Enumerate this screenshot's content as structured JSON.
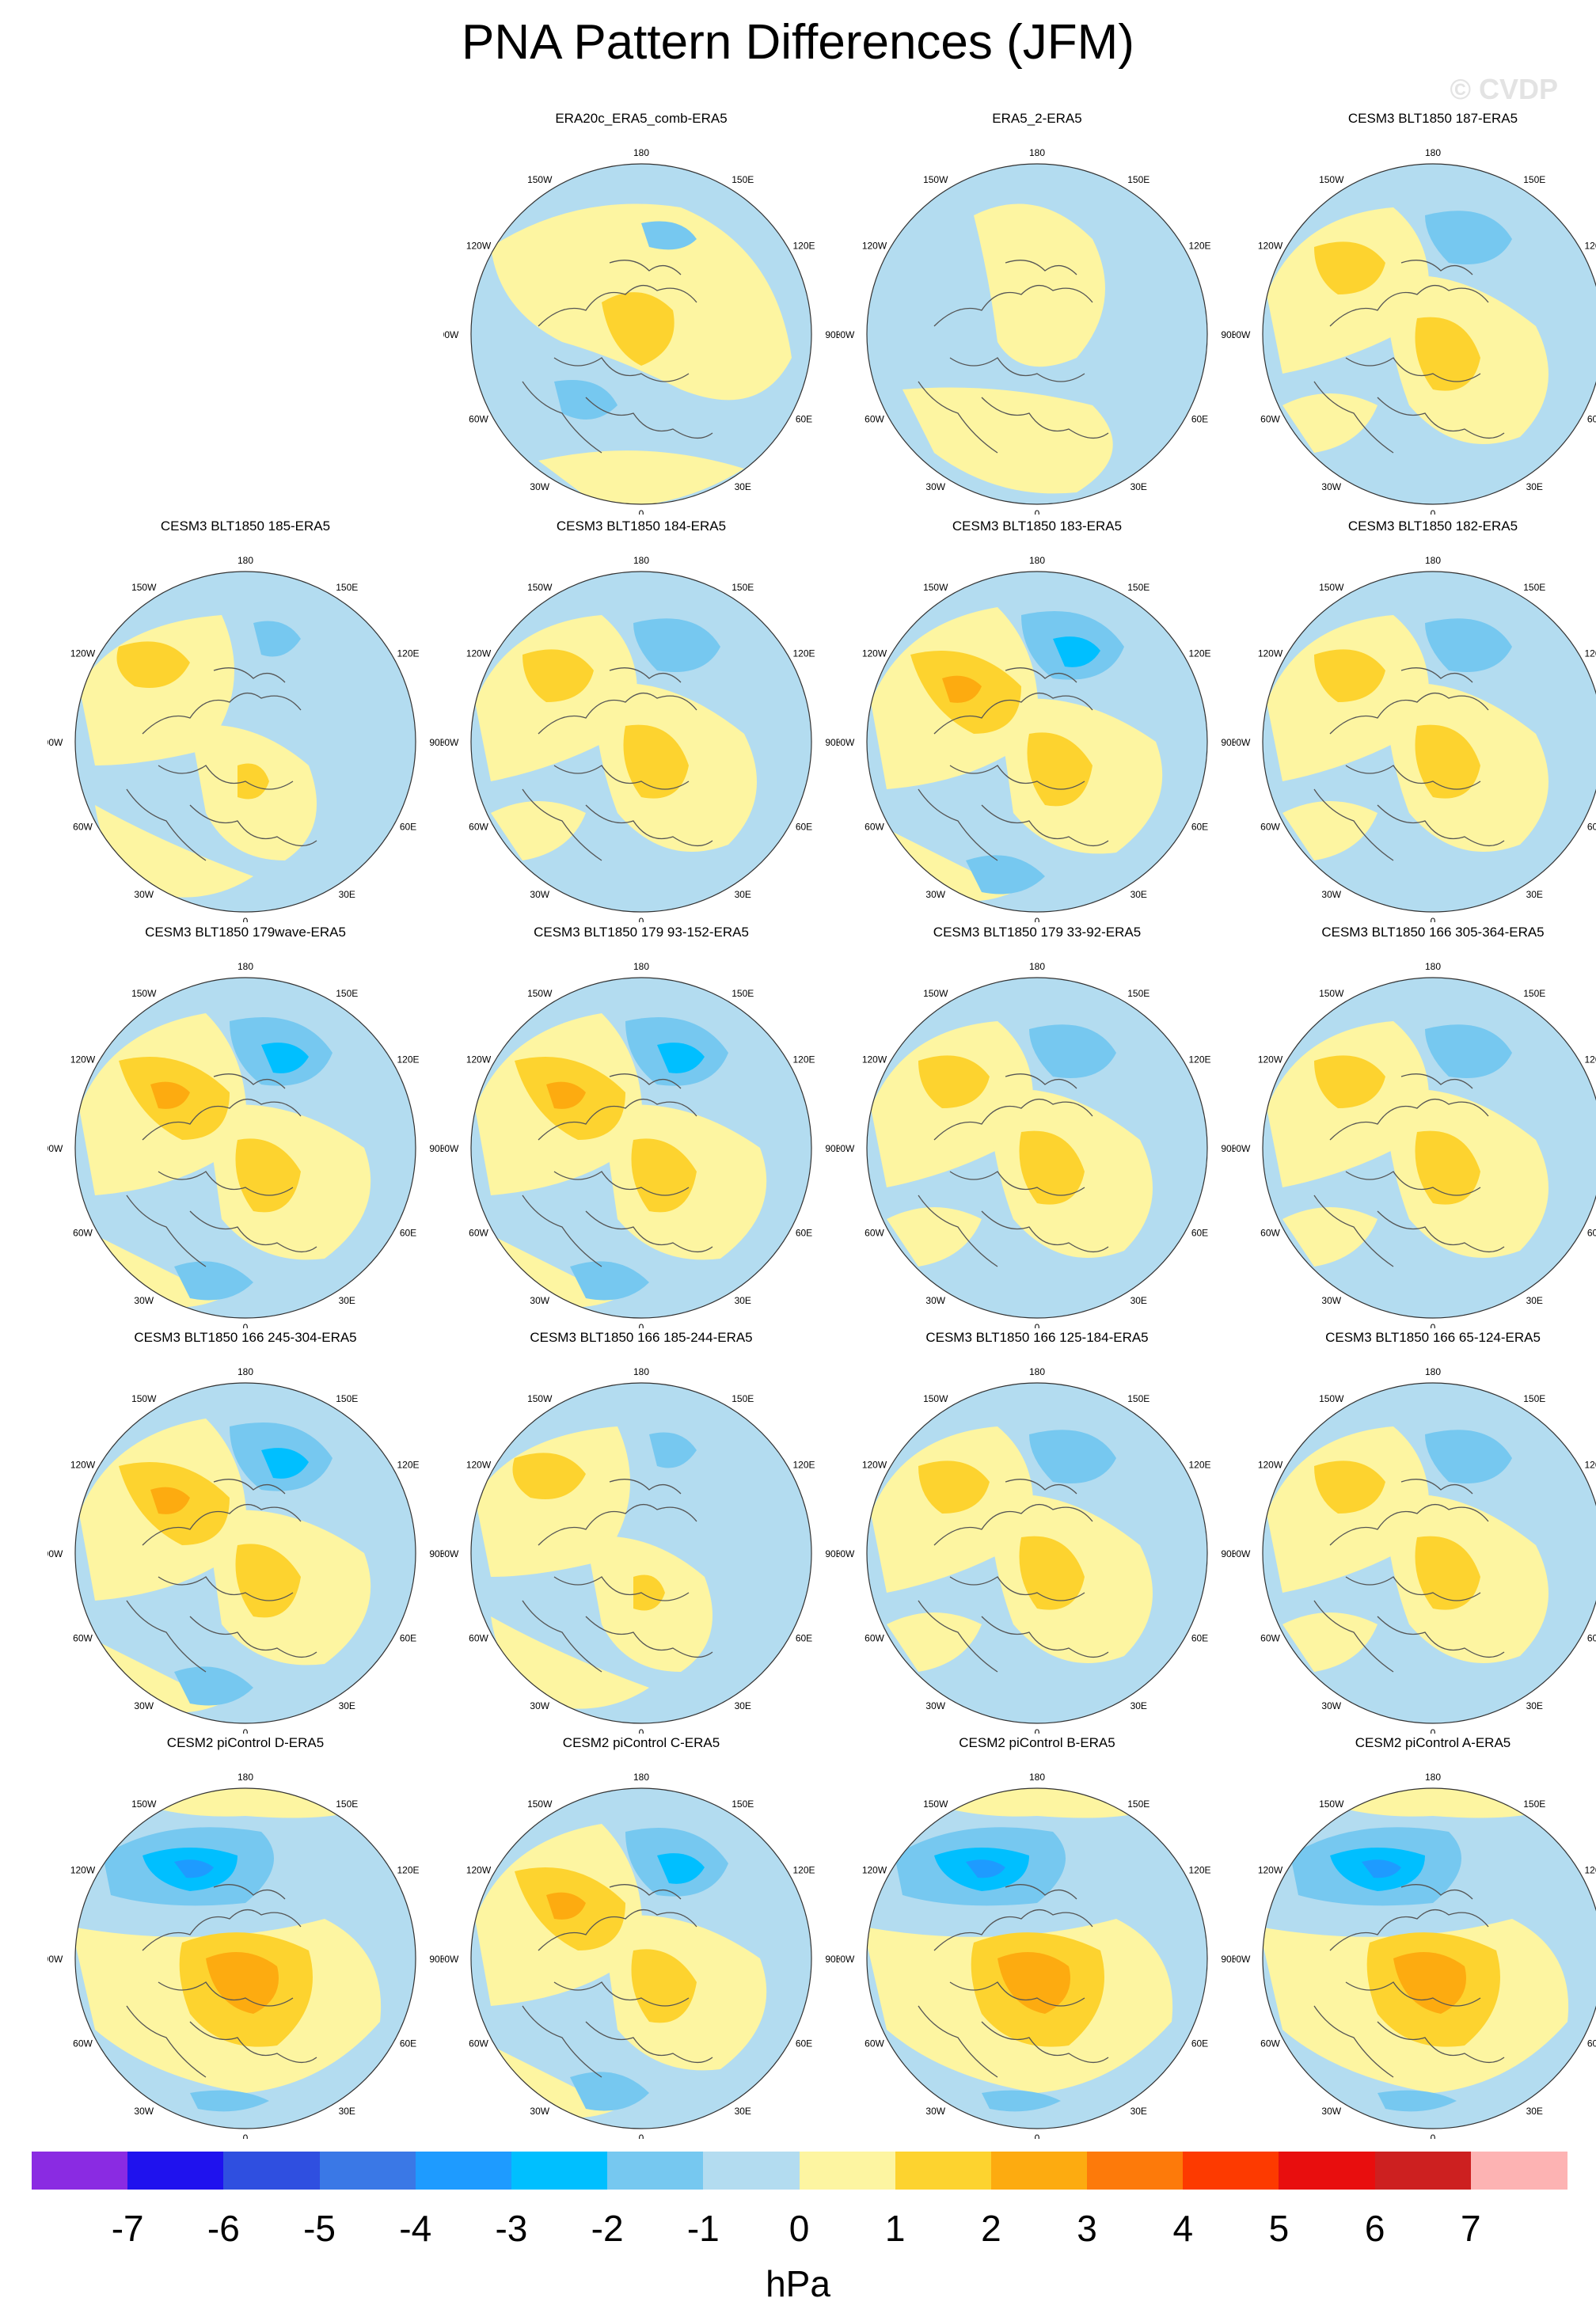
{
  "title": "PNA Pattern Differences (JFM)",
  "copyright": "© CVDP",
  "panel_labels": {
    "top": "180",
    "bottom": "0",
    "left": "90W",
    "right": "90E",
    "top_left": "150W",
    "top_right": "150E",
    "upper_left": "120W",
    "upper_right": "120E",
    "lower_left": "60W",
    "lower_right": "60E",
    "bottom_left": "30W",
    "bottom_right": "30E"
  },
  "panels": [
    {
      "title": "ERA20c_ERA5_comb-ERA5",
      "row": 0,
      "col": 1,
      "pattern": "weakA"
    },
    {
      "title": "ERA5_2-ERA5",
      "row": 0,
      "col": 2,
      "pattern": "blue"
    },
    {
      "title": "CESM3 BLT1850 187-ERA5",
      "row": 0,
      "col": 3,
      "pattern": "pna2"
    },
    {
      "title": "CESM3 BLT1850 185-ERA5",
      "row": 1,
      "col": 0,
      "pattern": "pna1"
    },
    {
      "title": "CESM3 BLT1850 184-ERA5",
      "row": 1,
      "col": 1,
      "pattern": "pna2"
    },
    {
      "title": "CESM3 BLT1850 183-ERA5",
      "row": 1,
      "col": 2,
      "pattern": "pna3"
    },
    {
      "title": "CESM3 BLT1850 182-ERA5",
      "row": 1,
      "col": 3,
      "pattern": "pna2"
    },
    {
      "title": "CESM3 BLT1850 179wave-ERA5",
      "row": 2,
      "col": 0,
      "pattern": "pna3"
    },
    {
      "title": "CESM3 BLT1850 179 93-152-ERA5",
      "row": 2,
      "col": 1,
      "pattern": "pna3"
    },
    {
      "title": "CESM3 BLT1850 179 33-92-ERA5",
      "row": 2,
      "col": 2,
      "pattern": "pna2"
    },
    {
      "title": "CESM3 BLT1850 166 305-364-ERA5",
      "row": 2,
      "col": 3,
      "pattern": "pna2"
    },
    {
      "title": "CESM3 BLT1850 166 245-304-ERA5",
      "row": 3,
      "col": 0,
      "pattern": "pna3"
    },
    {
      "title": "CESM3 BLT1850 166 185-244-ERA5",
      "row": 3,
      "col": 1,
      "pattern": "pna1"
    },
    {
      "title": "CESM3 BLT1850 166 125-184-ERA5",
      "row": 3,
      "col": 2,
      "pattern": "pna2"
    },
    {
      "title": "CESM3 BLT1850 166 65-124-ERA5",
      "row": 3,
      "col": 3,
      "pattern": "pna2"
    },
    {
      "title": "CESM2 piControl D-ERA5",
      "row": 4,
      "col": 0,
      "pattern": "pna4"
    },
    {
      "title": "CESM2 piControl C-ERA5",
      "row": 4,
      "col": 1,
      "pattern": "pna3"
    },
    {
      "title": "CESM2 piControl B-ERA5",
      "row": 4,
      "col": 2,
      "pattern": "pna4"
    },
    {
      "title": "CESM2 piControl A-ERA5",
      "row": 4,
      "col": 3,
      "pattern": "pna4"
    }
  ],
  "colorbar": {
    "units": "hPa",
    "ticks": [
      "-7",
      "-6",
      "-5",
      "-4",
      "-3",
      "-2",
      "-1",
      "0",
      "1",
      "2",
      "3",
      "4",
      "5",
      "6",
      "7"
    ],
    "colors": [
      "#8a2be2",
      "#1f12ee",
      "#2f4fe0",
      "#3a78e6",
      "#1e9bff",
      "#00bfff",
      "#76c8f0",
      "#b3dcf0",
      "#fdf5a1",
      "#fdd32f",
      "#fdab10",
      "#fd7a0a",
      "#fd3a00",
      "#e80e0e",
      "#cd2020",
      "#fdb3b3"
    ]
  }
}
